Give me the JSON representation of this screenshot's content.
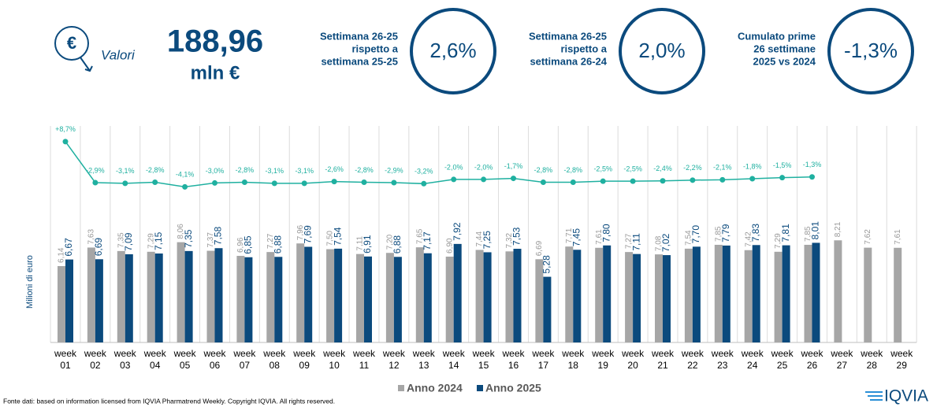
{
  "header": {
    "icon_symbol": "€",
    "icon_label": "Valori",
    "total_value": "188,96",
    "total_unit": "mln €"
  },
  "kpis": [
    {
      "label": [
        "Settimana 26-25",
        "rispetto a",
        "settimana 25-25"
      ],
      "value": "2,6%"
    },
    {
      "label": [
        "Settimana 26-25",
        "rispetto a",
        "settimana 26-24"
      ],
      "value": "2,0%"
    },
    {
      "label": [
        "Cumulato prime",
        "26 settimane",
        "2025 vs 2024"
      ],
      "value": "-1,3%"
    }
  ],
  "chart_data": {
    "type": "bar",
    "y_label": "Milioni di euro",
    "categories": [
      "week 01",
      "week 02",
      "week 03",
      "week 04",
      "week 05",
      "week 06",
      "week 07",
      "week 08",
      "week 09",
      "week 10",
      "week 11",
      "week 12",
      "week 13",
      "week 14",
      "week 15",
      "week 16",
      "week 17",
      "week 18",
      "week 19",
      "week 20",
      "week 21",
      "week 22",
      "week 23",
      "week 24",
      "week 25",
      "week 26",
      "week 27",
      "week 28",
      "week 29"
    ],
    "ylim": [
      0,
      10
    ],
    "y2lim": [
      -5,
      10
    ],
    "series": [
      {
        "name": "Anno 2024",
        "color": "#a6a6a6",
        "values": [
          6.14,
          7.63,
          7.35,
          7.29,
          8.06,
          7.37,
          6.96,
          7.27,
          7.96,
          7.5,
          7.11,
          7.2,
          7.65,
          6.9,
          7.44,
          7.32,
          6.69,
          7.71,
          7.61,
          7.27,
          7.08,
          7.54,
          7.85,
          7.42,
          7.29,
          7.85,
          8.21,
          7.62,
          7.61
        ],
        "value_labels": [
          "6,14",
          "7,63",
          "7,35",
          "7,29",
          "8,06",
          "7,37",
          "6,96",
          "7,27",
          "7,96",
          "7,50",
          "7,11",
          "7,20",
          "7,65",
          "6,90",
          "7,44",
          "7,32",
          "6,69",
          "7,71",
          "7,61",
          "7,27",
          "7,08",
          "7,54",
          "7,85",
          "7,42",
          "7,29",
          "7,85",
          "8,21",
          "7,62",
          "7,61"
        ]
      },
      {
        "name": "Anno 2025",
        "color": "#0b4a7d",
        "values": [
          6.67,
          6.69,
          7.09,
          7.15,
          7.35,
          7.58,
          6.85,
          6.88,
          7.69,
          7.54,
          6.91,
          6.88,
          7.17,
          7.92,
          7.25,
          7.53,
          5.28,
          7.45,
          7.8,
          7.11,
          7.02,
          7.7,
          7.79,
          7.83,
          7.81,
          8.01,
          null,
          null,
          null
        ],
        "value_labels": [
          "6,67",
          "6,69",
          "7,09",
          "7,15",
          "7,35",
          "7,58",
          "6,85",
          "6,88",
          "7,69",
          "7,54",
          "6,91",
          "6,88",
          "7,17",
          "7,92",
          "7,25",
          "7,53",
          "5,28",
          "7,45",
          "7,80",
          "7,11",
          "7,02",
          "7,70",
          "7,79",
          "7,83",
          "7,81",
          "8,01",
          null,
          null,
          null
        ]
      },
      {
        "type": "line",
        "axis": "y2",
        "color": "#1fb0a0",
        "values": [
          8.7,
          -2.9,
          -3.1,
          -2.8,
          -4.1,
          -3.0,
          -2.8,
          -3.1,
          -3.1,
          -2.6,
          -2.8,
          -2.9,
          -3.2,
          -2.0,
          -2.0,
          -1.7,
          -2.8,
          -2.8,
          -2.5,
          -2.5,
          -2.4,
          -2.2,
          -2.1,
          -1.8,
          -1.5,
          -1.3,
          null,
          null,
          null
        ],
        "value_labels": [
          "+8,7%",
          "-2,9%",
          "-3,1%",
          "-2,8%",
          "-4,1%",
          "-3,0%",
          "-2,8%",
          "-3,1%",
          "-3,1%",
          "-2,6%",
          "-2,8%",
          "-2,9%",
          "-3,2%",
          "-2,0%",
          "-2,0%",
          "-1,7%",
          "-2,8%",
          "-2,8%",
          "-2,5%",
          "-2,5%",
          "-2,4%",
          "-2,2%",
          "-2,1%",
          "-1,8%",
          "-1,5%",
          "-1,3%",
          null,
          null,
          null
        ]
      }
    ]
  },
  "footer": {
    "source": "Fonte dati: based on information licensed from IQVIA Pharmatrend Weekly. Copyright IQVIA. All rights reserved.",
    "logo": "IQVIA"
  }
}
